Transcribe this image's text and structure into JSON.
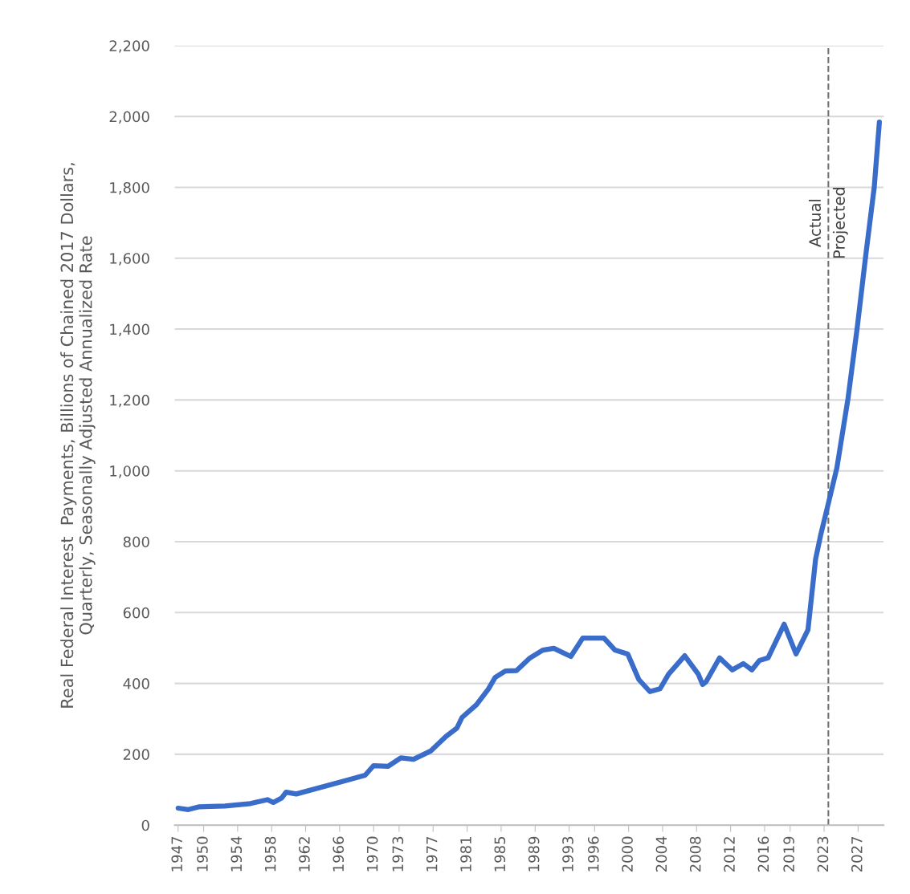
{
  "chart_data": {
    "type": "line",
    "ylabel": "Real Federal Interest  Payments, Billions of Chained 2017 Dollars,\nQuarterly, Seasonally Adjusted Annualized Rate",
    "series": [
      {
        "color": "#3a6cc9",
        "x": [
          1947,
          1948.2,
          1949.5,
          1952.5,
          1955.5,
          1957.5,
          1958.2,
          1959.2,
          1959.7,
          1960.9,
          1966.6,
          1969,
          1970,
          1971.7,
          1973.2,
          1974.7,
          1976.7,
          1978.5,
          1979.8,
          1980.4,
          1982.1,
          1983.5,
          1984.3,
          1985.5,
          1986.8,
          1988.4,
          1989.9,
          1991.2,
          1993.2,
          1994.6,
          1997.1,
          1998.4,
          1999.9,
          2001.2,
          2002.5,
          2003.7,
          2004.7,
          2006.6,
          2008.2,
          2008.7,
          2009.1,
          2010.7,
          2012.2,
          2013.5,
          2014.5,
          2015.4,
          2016.4,
          2018.3,
          2019.7,
          2021.1,
          2022,
          2022.6,
          2023.6,
          2024.5,
          2025.8,
          2026.9,
          2027.9,
          2028.9,
          2029.5
        ],
        "values": [
          48,
          44,
          52,
          54,
          61,
          72,
          64,
          77,
          93,
          88,
          125,
          141,
          168,
          166,
          190,
          186,
          209,
          250,
          274,
          304,
          340,
          384,
          417,
          435,
          436,
          472,
          494,
          499,
          476,
          528,
          528,
          494,
          483,
          411,
          377,
          385,
          426,
          478,
          426,
          397,
          404,
          472,
          438,
          456,
          438,
          465,
          472,
          567,
          483,
          551,
          751,
          819,
          918,
          1008,
          1202,
          1405,
          1608,
          1801,
          1984
        ]
      }
    ],
    "xlim": [
      1946.6,
      2030
    ],
    "xticks": [
      1947,
      1950,
      1954,
      1958,
      1962,
      1966,
      1970,
      1973,
      1977,
      1981,
      1985,
      1989,
      1993,
      1996,
      2000,
      2004,
      2008,
      2012,
      2016,
      2019,
      2023,
      2027
    ],
    "ylim": [
      0,
      2200
    ],
    "yticks": [
      {
        "value": 0,
        "label": "0"
      },
      {
        "value": 200,
        "label": "200"
      },
      {
        "value": 400,
        "label": "400"
      },
      {
        "value": 600,
        "label": "600"
      },
      {
        "value": 800,
        "label": "800"
      },
      {
        "value": 1000,
        "label": "1,000"
      },
      {
        "value": 1200,
        "label": "1,200"
      },
      {
        "value": 1400,
        "label": "1,400"
      },
      {
        "value": 1600,
        "label": "1,600"
      },
      {
        "value": 1800,
        "label": "1,800"
      },
      {
        "value": 2000,
        "label": "2,000"
      },
      {
        "value": 2200,
        "label": "2,200"
      }
    ],
    "grid": "y",
    "ref_lines": [
      {
        "axis": "x",
        "value": 2023.5,
        "color": "#707070",
        "line_style": "dashed"
      }
    ],
    "annotations": [
      {
        "text": "Actual",
        "x": 2023.5,
        "y": 1700
      },
      {
        "text": "Projected",
        "x": 2023.5,
        "y": 1700
      }
    ],
    "line_style": "solid",
    "marker": "none"
  }
}
